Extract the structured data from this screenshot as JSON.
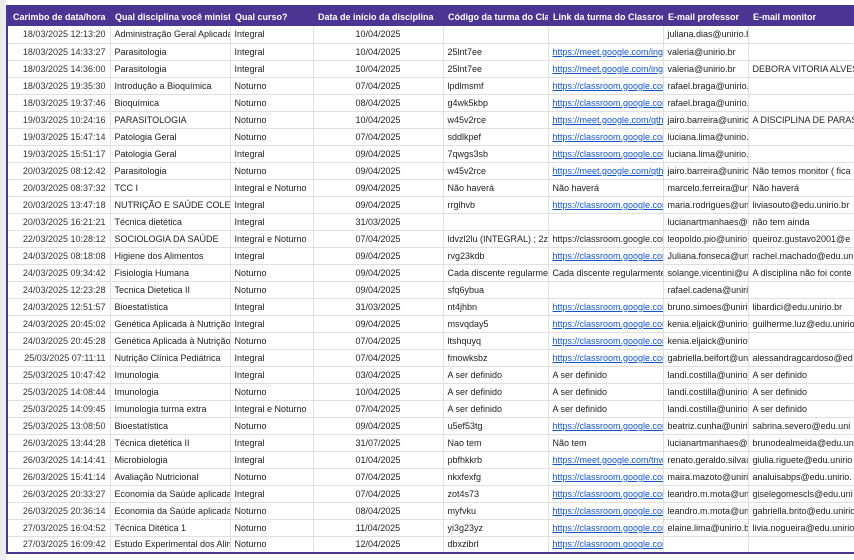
{
  "colors": {
    "header_bg": "#4b3593",
    "link_color": "#1155cc",
    "grid_color": "#e0e0e0",
    "border_color": "#4b3593"
  },
  "table": {
    "columns": [
      {
        "id": "timestamp",
        "label": "Carimbo de data/hora"
      },
      {
        "id": "disciplina",
        "label": "Qual disciplina você ministra?"
      },
      {
        "id": "curso",
        "label": "Qual curso?"
      },
      {
        "id": "inicio",
        "label": "Data de início da disciplina"
      },
      {
        "id": "codigo",
        "label": "Código da turma do Classroom:"
      },
      {
        "id": "link",
        "label": "Link da turma do Classroom:"
      },
      {
        "id": "professor",
        "label": "E-mail professor"
      },
      {
        "id": "monitor",
        "label": "E-mail monitor"
      }
    ],
    "rows": [
      [
        "18/03/2025 12:13:20",
        "Administração Geral Aplicada a Nutr",
        "Integral",
        "10/04/2025",
        "",
        "",
        "juliana.dias@unirio.br",
        ""
      ],
      [
        "18/03/2025 14:33:27",
        "Parasitologia",
        "Integral",
        "10/04/2025",
        "25lnt7ee",
        {
          "text": "https://meet.google.com/ing-bysp-",
          "link": true
        },
        "valeria@unirio.br",
        ""
      ],
      [
        "18/03/2025 14:36:00",
        "Parasitologia",
        "Integral",
        "10/04/2025",
        "25lnt7ee",
        {
          "text": "https://meet.google.com/ing-bysp-",
          "link": true
        },
        "valeria@unirio.br",
        "DEBORA VITORIA ALVES"
      ],
      [
        "18/03/2025 19:35:30",
        "Introdução a Bioquímica",
        "Noturno",
        "07/04/2025",
        "lpdlmsmf",
        {
          "text": "https://classroom.google.com/c/N",
          "link": true
        },
        "rafael.braga@unirio.br",
        ""
      ],
      [
        "18/03/2025 19:37:46",
        "Bioquímica",
        "Noturno",
        "08/04/2025",
        "g4wk5kbp",
        {
          "text": "https://classroom.google.com/c/N",
          "link": true
        },
        "rafael.braga@unirio.br",
        ""
      ],
      [
        "19/03/2025 10:24:16",
        "PARASITOLOGIA",
        "Noturno",
        "10/04/2025",
        "w45v2rce",
        {
          "text": "https://meet.google.com/qth-uqun",
          "link": true
        },
        "jairo.barreira@unirio.b",
        "A DISCIPLINA DE PARAS"
      ],
      [
        "19/03/2025 15:47:14",
        "Patologia Geral",
        "Noturno",
        "07/04/2025",
        "sddlkpef",
        {
          "text": "https://classroom.google.com/c/N",
          "link": true
        },
        "luciana.lima@unirio.br",
        ""
      ],
      [
        "19/03/2025 15:51:17",
        "Patologia Geral",
        "Integral",
        "09/04/2025",
        "7qwgs3sb",
        {
          "text": "https://classroom.google.com/c/N",
          "link": true
        },
        "luciana.lima@unirio.br",
        ""
      ],
      [
        "20/03/2025 08:12:42",
        "Parasitologia",
        "Noturno",
        "09/04/2025",
        "w45v2rce",
        {
          "text": "https://meet.google.com/qth-uqun",
          "link": true
        },
        "jairo.barreira@unirio.b",
        "Não temos monitor ( fica"
      ],
      [
        "20/03/2025 08:37:32",
        "TCC I",
        "Integral e Noturno",
        "09/04/2025",
        "Não haverá",
        "Não haverá",
        "marcelo.ferreira@unirio.b",
        "Não haverá"
      ],
      [
        "20/03/2025 13:47:18",
        "NUTRIÇÃO E SAÚDE COLETIVA",
        "Integral",
        "09/04/2025",
        "rrglhvb",
        {
          "text": "https://classroom.google.com/c/N",
          "link": true
        },
        "maria.rodrigues@unirio.b",
        "liviasouto@edu.unirio.br"
      ],
      [
        "20/03/2025 16:21:21",
        "Técnica dietética",
        "Integral",
        "31/03/2025",
        "",
        "",
        "lucianartmanhaes@gma",
        "não tem ainda"
      ],
      [
        "22/03/2025 10:28:12",
        "SOCIOLOGIA DA SAÚDE",
        "Integral e Noturno",
        "07/04/2025",
        "ldvzl2lu (INTEGRAL) ; 2zplrv6s (NOTUR",
        "https://classroom.google.com/c/N",
        "leopoldo.pio@unirio.br",
        "queiroz.gustavo2001@e"
      ],
      [
        "24/03/2025 08:18:08",
        "Higiene dos Alimentos",
        "Integral",
        "09/04/2025",
        "rvg23kdb",
        {
          "text": "https://classroom.google.com/c/N",
          "link": true
        },
        "Juliana.fonseca@unirio",
        "rachel.machado@edu.un"
      ],
      [
        "24/03/2025 09:34:42",
        "Fisiologia Humana",
        "Noturno",
        "09/04/2025",
        "Cada discente regularmente matricula",
        "Cada discente regularmente matric",
        "solange.vicentini@unirio",
        "A disciplina não foi conte"
      ],
      [
        "24/03/2025 12:23:28",
        "Tecnica Dietetica II",
        "Noturno",
        "09/04/2025",
        "sfq6ybua",
        "",
        "rafael.cadena@unirio.br",
        ""
      ],
      [
        "24/03/2025 12:51:57",
        "Bioestatística",
        "Integral",
        "31/03/2025",
        "nt4jhbn",
        {
          "text": "https://classroom.google.com/c/N",
          "link": true
        },
        "bruno.simoes@unirio.br",
        "libardici@edu.unirio.br"
      ],
      [
        "24/03/2025 20:45:02",
        "Genética Aplicada à Nutrição (integ",
        "Integral",
        "09/04/2025",
        "msvqday5",
        {
          "text": "https://classroom.google.com/c/N",
          "link": true
        },
        "kenia.eljaick@unirio.br",
        "guilherme.luz@edu.unirio"
      ],
      [
        "24/03/2025 20:45:28",
        "Genética Aplicada à Nutrição (notur",
        "Noturno",
        "07/04/2025",
        "ltshquyq",
        {
          "text": "https://classroom.google.com/c/N",
          "link": true
        },
        "kenia.eljaick@unirio.br",
        ""
      ],
      [
        "25/03/2025 07:11:11",
        "Nutrição Clínica Pediátrica",
        "Integral",
        "07/04/2025",
        "fmowksbz",
        {
          "text": "https://classroom.google.com/c/N",
          "link": true
        },
        "gabriella.belfort@unirio.b",
        "alessandragcardoso@ed"
      ],
      [
        "25/03/2025 10:47:42",
        "Imunologia",
        "Integral",
        "03/04/2025",
        "A ser definido",
        "A ser definido",
        "landi.costilla@unirio.br",
        "A ser definido"
      ],
      [
        "25/03/2025 14:08:44",
        "Imunologia",
        "Noturno",
        "10/04/2025",
        "A ser definido",
        "A ser definido",
        "landi.costilla@unirio.br",
        "A ser definido"
      ],
      [
        "25/03/2025 14:09:45",
        "Imunologia  turma extra",
        "Integral e Noturno",
        "07/04/2025",
        "A ser definido",
        "A ser definido",
        "landi.costilla@unirio.br",
        "A ser definido"
      ],
      [
        "25/03/2025 13:08:50",
        "Bioestatística",
        "Noturno",
        "09/04/2025",
        "u5ef53tg",
        {
          "text": "https://classroom.google.com/c/N",
          "link": true
        },
        "beatriz.cunha@uniriotec",
        "sabrina.severo@edu.uni"
      ],
      [
        "26/03/2025 13:44:28",
        "Técnica dietética II",
        "Integral",
        "31/07/2025",
        "Nao tem",
        "Não tem",
        "lucianartmanhaes@gma",
        "brunodealmeida@edu.un"
      ],
      [
        "26/03/2025 14:14:41",
        "Microbiologia",
        "Integral",
        "01/04/2025",
        "pbfhkkrb",
        {
          "text": "https://meet.google.com/tnw-hecn",
          "link": true
        },
        "renato.geraldo.silva@uni",
        "giulia.riguete@edu.unirio"
      ],
      [
        "26/03/2025 15:41:14",
        "Avaliação Nutricional",
        "Noturno",
        "07/04/2025",
        "nkxfexfg",
        {
          "text": "https://classroom.google.com/c/N",
          "link": true
        },
        "maira.mazoto@unirio.br",
        "analuisabps@edu.unirio."
      ],
      [
        "26/03/2025 20:33:27",
        "Economia da Saúde aplicada a Nutri",
        "Integral",
        "07/04/2025",
        "zot4s73",
        {
          "text": "https://classroom.google.com/c/N",
          "link": true
        },
        "leandro.m.mota@unirio.b",
        "giselegomescls@edu.uni"
      ],
      [
        "26/03/2025 20:36:14",
        "Economia da Saúde aplicada a Nutri",
        "Noturno",
        "08/04/2025",
        "myfvku",
        {
          "text": "https://classroom.google.com/c/N",
          "link": true
        },
        "leandro.m.mota@unirio.b",
        "gabriella.brito@edu.unirio"
      ],
      [
        "27/03/2025 16:04:52",
        "Técnica Ditética 1",
        "Noturno",
        "11/04/2025",
        "yi3g23yz",
        {
          "text": "https://classroom.google.com/c/N",
          "link": true
        },
        "elaine.lima@unirio.br",
        "livia.nogueira@edu.unirio"
      ],
      [
        "27/03/2025 16:09:42",
        "Estudo Experimental dos Alimentos",
        "Noturno",
        "12/04/2025",
        "dbxzibrl",
        {
          "text": "https://classroom.google.com/c/N",
          "link": true
        },
        "",
        ""
      ]
    ]
  }
}
